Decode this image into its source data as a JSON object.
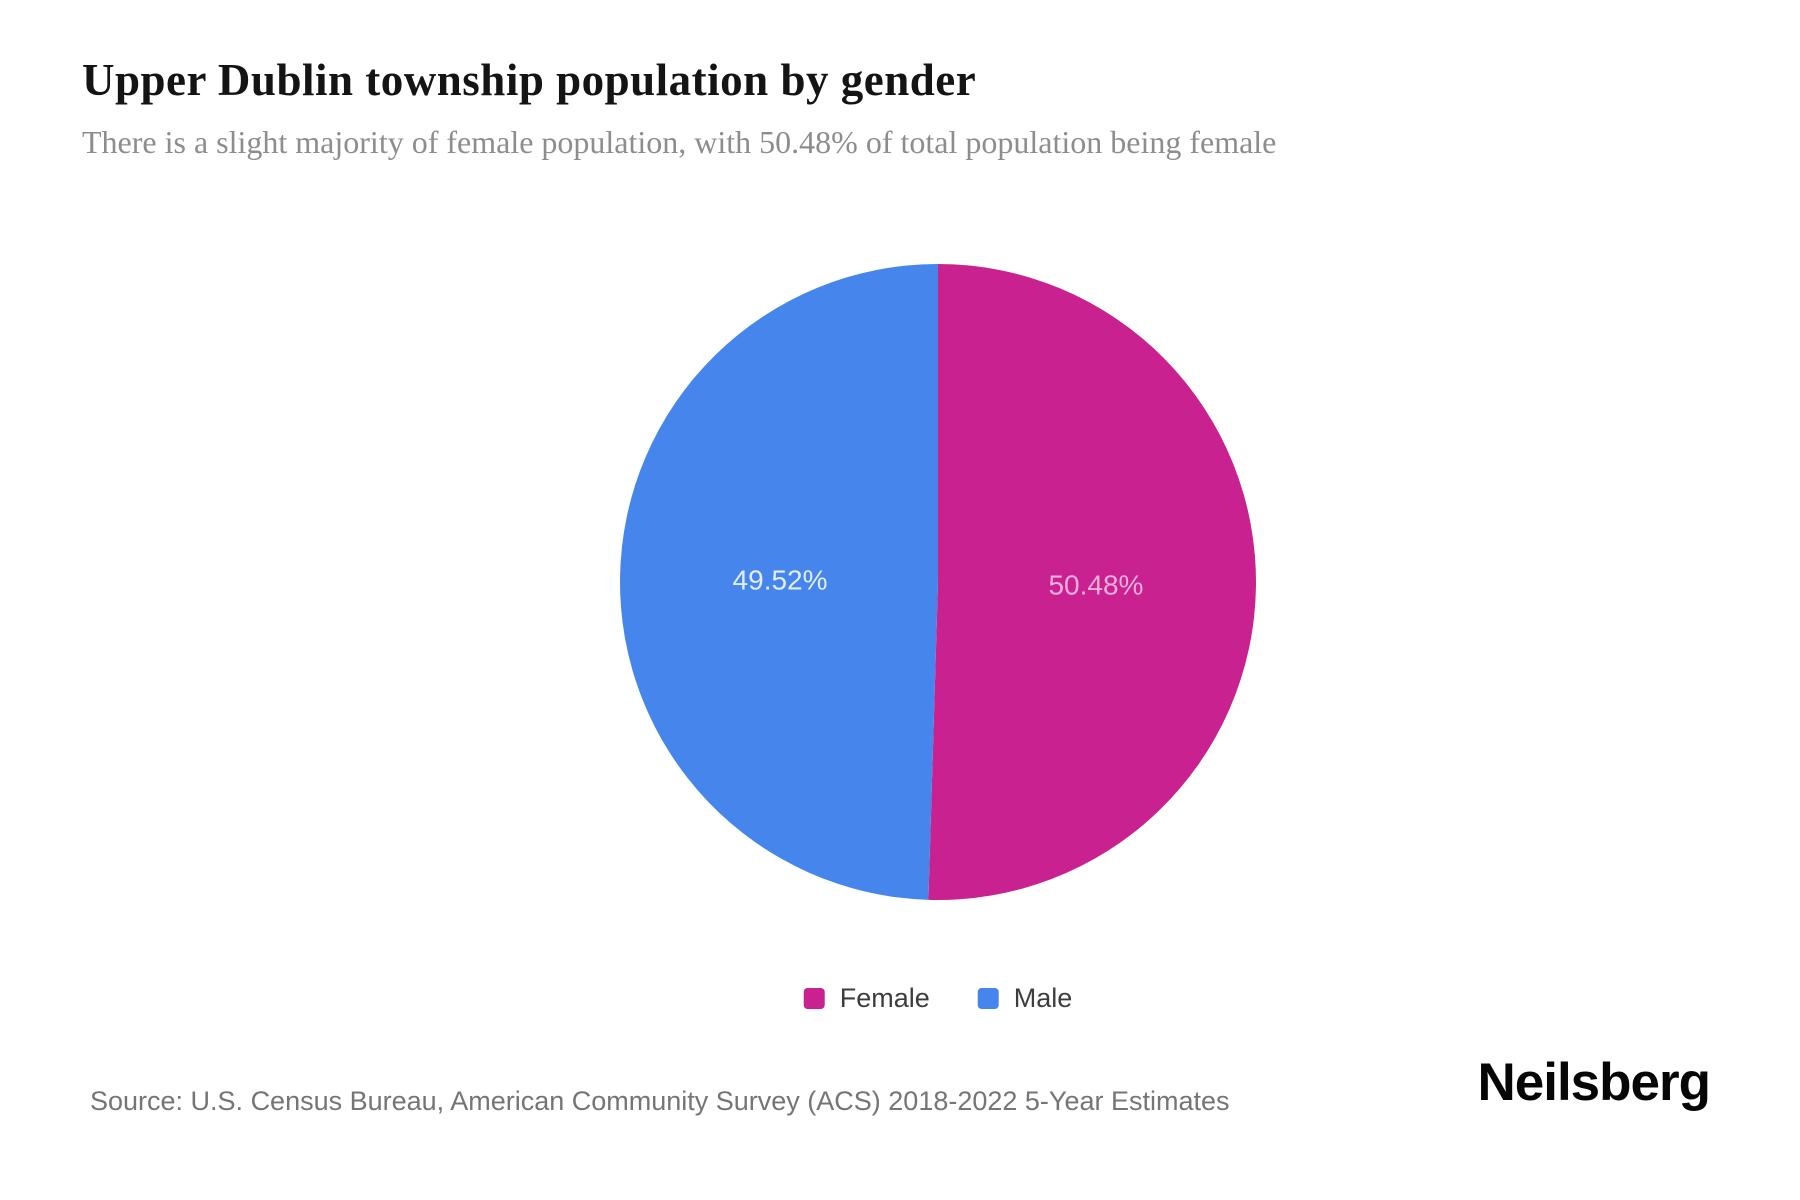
{
  "chart_data": {
    "type": "pie",
    "title": "Upper Dublin township population by gender",
    "subtitle": "There is a slight majority of female population, with 50.48% of total population being female",
    "series": [
      {
        "name": "Female",
        "value": 50.48,
        "display": "50.48%",
        "color": "#C9218F",
        "label_color": "#F0AEDC"
      },
      {
        "name": "Male",
        "value": 49.52,
        "display": "49.52%",
        "color": "#4685EC",
        "label_color": "#E3EDFB"
      }
    ],
    "start_angle_deg": 0,
    "direction": "clockwise",
    "legend_position": "bottom",
    "slice_labels_inside": true
  },
  "footer": {
    "source": "Source: U.S. Census Bureau, American Community Survey (ACS) 2018-2022 5-Year Estimates",
    "brand": "Neilsberg"
  }
}
